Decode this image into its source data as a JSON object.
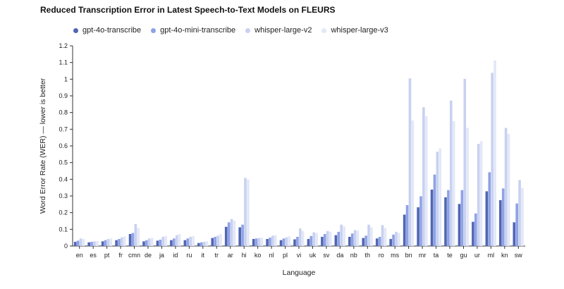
{
  "chart_data": {
    "type": "bar",
    "title": "Reduced Transcription Error in Latest Speech-to-Text Models on FLEURS",
    "xlabel": "Language",
    "ylabel": "Word Error Rate (WER) — lower is better",
    "ylim": [
      0,
      1.2
    ],
    "yticks": [
      "0",
      "0.1",
      "0.2",
      "0.3",
      "0.4",
      "0.5",
      "0.6",
      "0.7",
      "0.8",
      "0.9",
      "1",
      "1.1",
      "1.2"
    ],
    "legend_position": "top-left",
    "categories": [
      "en",
      "es",
      "pt",
      "fr",
      "cmn",
      "de",
      "ja",
      "id",
      "ru",
      "it",
      "tr",
      "ar",
      "hi",
      "ko",
      "nl",
      "pl",
      "vi",
      "uk",
      "sv",
      "da",
      "nb",
      "th",
      "ro",
      "ms",
      "bn",
      "mr",
      "ta",
      "te",
      "gu",
      "ur",
      "ml",
      "kn",
      "sw"
    ],
    "series": [
      {
        "name": "gpt-4o-transcribe",
        "color": "#5066b3",
        "values": [
          0.025,
          0.022,
          0.028,
          0.035,
          0.072,
          0.028,
          0.032,
          0.035,
          0.035,
          0.018,
          0.048,
          0.115,
          0.112,
          0.042,
          0.042,
          0.035,
          0.04,
          0.042,
          0.055,
          0.065,
          0.055,
          0.048,
          0.045,
          0.042,
          0.188,
          0.232,
          0.338,
          0.292,
          0.252,
          0.145,
          0.328,
          0.275,
          0.142
        ]
      },
      {
        "name": "gpt-4o-mini-transcribe",
        "color": "#8fa2e6",
        "values": [
          0.032,
          0.025,
          0.035,
          0.042,
          0.078,
          0.035,
          0.038,
          0.045,
          0.045,
          0.022,
          0.055,
          0.142,
          0.128,
          0.045,
          0.05,
          0.045,
          0.055,
          0.06,
          0.072,
          0.085,
          0.075,
          0.062,
          0.055,
          0.068,
          0.245,
          0.298,
          0.428,
          0.335,
          0.335,
          0.195,
          0.442,
          0.345,
          0.255
        ]
      },
      {
        "name": "whisper-large-v2",
        "color": "#c8d1f0",
        "values": [
          0.045,
          0.028,
          0.042,
          0.052,
          0.132,
          0.045,
          0.055,
          0.065,
          0.055,
          0.025,
          0.062,
          0.162,
          0.408,
          0.048,
          0.062,
          0.052,
          0.105,
          0.082,
          0.09,
          0.128,
          0.095,
          0.128,
          0.125,
          0.085,
          1.005,
          0.832,
          0.565,
          0.872,
          1.002,
          0.612,
          1.038,
          0.708,
          0.395
        ]
      },
      {
        "name": "whisper-large-v3",
        "color": "#e3e8f8",
        "values": [
          0.042,
          0.03,
          0.045,
          0.058,
          0.108,
          0.048,
          0.06,
          0.072,
          0.06,
          0.028,
          0.072,
          0.152,
          0.398,
          0.05,
          0.065,
          0.058,
          0.09,
          0.078,
          0.085,
          0.118,
          0.092,
          0.112,
          0.108,
          0.078,
          0.752,
          0.778,
          0.585,
          0.748,
          0.708,
          0.628,
          1.112,
          0.672,
          0.348
        ]
      }
    ]
  }
}
